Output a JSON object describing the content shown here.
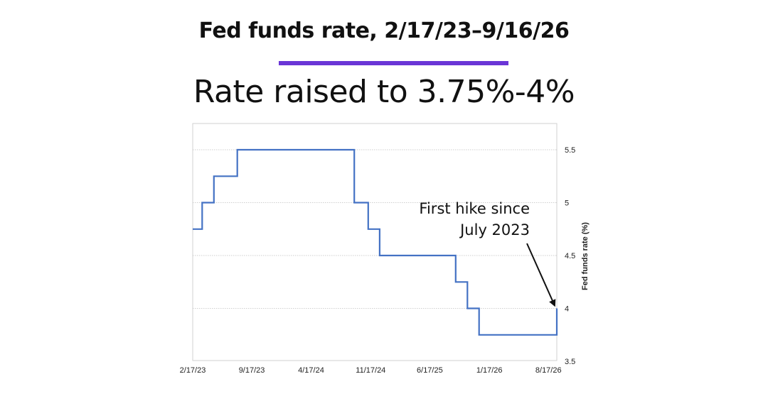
{
  "header": {
    "title": "Fed funds rate, 2/17/23–9/16/26",
    "subtitle": "Rate raised to 3.75%-4%",
    "accent_color": "#6a35d6"
  },
  "chart_data": {
    "type": "line",
    "step": true,
    "line_color": "#4472c4",
    "xlabel": "",
    "ylabel": "Fed funds rate (%)",
    "x_range": [
      "2023-02-17",
      "2026-09-16"
    ],
    "ylim": [
      3.5,
      5.5
    ],
    "x_ticks": [
      {
        "date": "2023-02-17",
        "label": "2/17/23"
      },
      {
        "date": "2023-09-17",
        "label": "9/17/23"
      },
      {
        "date": "2024-04-17",
        "label": "4/17/24"
      },
      {
        "date": "2024-11-17",
        "label": "11/17/24"
      },
      {
        "date": "2025-06-17",
        "label": "6/17/25"
      },
      {
        "date": "2026-01-17",
        "label": "1/17/26"
      },
      {
        "date": "2026-08-17",
        "label": "8/17/26"
      }
    ],
    "y_ticks": [
      {
        "value": 5.5,
        "label": "5.5"
      },
      {
        "value": 5,
        "label": "5"
      },
      {
        "value": 4.5,
        "label": "4.5"
      },
      {
        "value": 4,
        "label": "4"
      },
      {
        "value": 3.5,
        "label": "3.5"
      }
    ],
    "grid": true,
    "series": [
      {
        "points": [
          {
            "date": "2023-02-17",
            "value": 4.75
          },
          {
            "date": "2023-03-23",
            "value": 5.0
          },
          {
            "date": "2023-05-04",
            "value": 5.25
          },
          {
            "date": "2023-07-27",
            "value": 5.5
          },
          {
            "date": "2024-09-19",
            "value": 5.0
          },
          {
            "date": "2024-11-08",
            "value": 4.75
          },
          {
            "date": "2024-12-19",
            "value": 4.5
          },
          {
            "date": "2025-09-18",
            "value": 4.25
          },
          {
            "date": "2025-10-30",
            "value": 4.0
          },
          {
            "date": "2025-12-11",
            "value": 3.75
          },
          {
            "date": "2026-09-16",
            "value": 4.0
          }
        ]
      }
    ],
    "annotation": {
      "lines": [
        "First hike since",
        "July 2023"
      ]
    }
  }
}
